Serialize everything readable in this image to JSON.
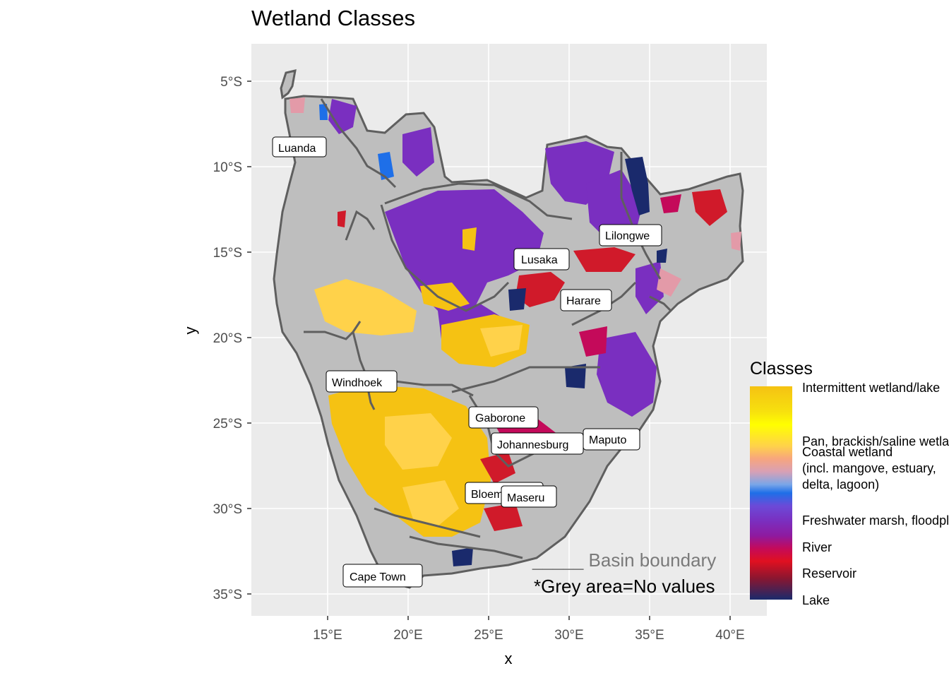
{
  "title": "Wetland Classes",
  "x_axis": {
    "title": "x",
    "ticks": [
      "15°E",
      "20°E",
      "25°E",
      "30°E",
      "35°E",
      "40°E"
    ]
  },
  "y_axis": {
    "title": "y",
    "ticks": [
      "5°S",
      "10°S",
      "15°S",
      "20°S",
      "25°S",
      "30°S",
      "35°S"
    ]
  },
  "cities": [
    "Luanda",
    "Lilongwe",
    "Lusaka",
    "Harare",
    "Windhoek",
    "Gaborone",
    "Johannesburg",
    "Maputo",
    "Bloemfontein",
    "Maseru",
    "Cape Town"
  ],
  "legend": {
    "title": "Classes",
    "labels": [
      "Intermittent wetland/lake",
      "Pan, brackish/saline wetland",
      "Coastal wetland",
      "(incl. mangove, estuary,",
      "delta, lagoon)",
      "Freshwater marsh, floodplain",
      "River",
      "Reservoir",
      "Lake"
    ]
  },
  "annotations": {
    "basin": "_____ Basin boundary",
    "grey_note": "*Grey area=No values"
  },
  "colors": {
    "panel_bg": "#ebebeb",
    "land_no_value": "#bebebe",
    "basin_border": "#595959",
    "intermittent": "#f5c213",
    "pan": "#ffd24a",
    "freshwater": "#7a2fc0",
    "river": "#c40a5a",
    "reservoir": "#d01a2a",
    "lake": "#1a2a6c",
    "coastal": "#e39aa8"
  }
}
